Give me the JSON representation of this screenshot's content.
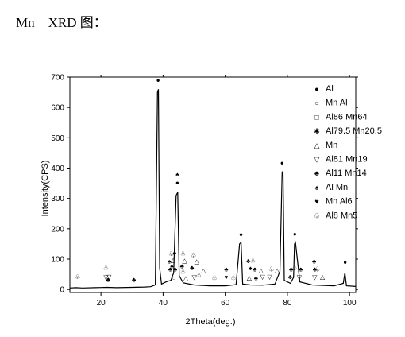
{
  "caption": "Mn    XRD 图：",
  "chart_data": {
    "type": "line",
    "title": "",
    "xlabel": "2Theta(deg.)",
    "ylabel": "Intensity(CPS)",
    "xlim": [
      10,
      102
    ],
    "ylim": [
      -10,
      700
    ],
    "xticks": [
      20,
      40,
      60,
      80,
      100
    ],
    "xtick_labels": [
      "20",
      "40",
      "60",
      "80",
      "100"
    ],
    "yticks": [
      0,
      100,
      200,
      300,
      400,
      500,
      600,
      700
    ],
    "ytick_labels": [
      "0",
      "100",
      "200",
      "300",
      "400",
      "500",
      "600",
      "700"
    ],
    "grid": false,
    "legend_position": "top-right",
    "legend": [
      {
        "symbol": "●",
        "label": "Al"
      },
      {
        "symbol": "○",
        "label": "Mn Al"
      },
      {
        "symbol": "□",
        "label": "Al86 Mn64"
      },
      {
        "symbol": "✱",
        "label": "Al79.5 Mn20.5"
      },
      {
        "symbol": "△",
        "label": "Mn"
      },
      {
        "symbol": "▽",
        "label": "Al81 Mn19"
      },
      {
        "symbol": "♣",
        "label": "Al11 Mn14"
      },
      {
        "symbol": "♠",
        "label": "Al Mn"
      },
      {
        "symbol": "♥",
        "label": "Mn Al6"
      },
      {
        "symbol": "♧",
        "label": "Al8 Mn5"
      }
    ],
    "series": [
      {
        "values_x": [
          10,
          12,
          14,
          18,
          22,
          25,
          30,
          34,
          36,
          37.5,
          38.2,
          38.5,
          38.9,
          39.5,
          41,
          42.5,
          43.4,
          44.2,
          44.7,
          45.2,
          46.5,
          50,
          55,
          60,
          63.5,
          64.6,
          65.1,
          65.6,
          68,
          72,
          76,
          77.6,
          78.3,
          78.6,
          79,
          81,
          82,
          82.3,
          82.6,
          84,
          88,
          95,
          98,
          98.5,
          99,
          102
        ],
        "values_y": [
          5,
          6,
          5,
          6,
          7,
          6,
          7,
          8,
          9,
          15,
          650,
          660,
          70,
          18,
          25,
          30,
          55,
          310,
          320,
          45,
          22,
          15,
          12,
          12,
          16,
          150,
          155,
          18,
          15,
          14,
          18,
          60,
          385,
          390,
          30,
          20,
          40,
          150,
          155,
          25,
          15,
          12,
          20,
          55,
          12,
          10
        ]
      }
    ],
    "annotations": [
      {
        "symbol": "●",
        "x": 38.4,
        "y": 683
      },
      {
        "symbol": "●",
        "x": 44.6,
        "y": 345
      },
      {
        "symbol": "♠",
        "x": 44.6,
        "y": 373
      },
      {
        "symbol": "●",
        "x": 65.1,
        "y": 175
      },
      {
        "symbol": "●",
        "x": 78.3,
        "y": 411
      },
      {
        "symbol": "●",
        "x": 82.4,
        "y": 176
      },
      {
        "symbol": "●",
        "x": 98.6,
        "y": 83
      },
      {
        "symbol": "♧",
        "x": 12.5,
        "y": 35
      },
      {
        "symbol": "♧",
        "x": 21.6,
        "y": 63
      },
      {
        "symbol": "▽",
        "x": 21.6,
        "y": 33
      },
      {
        "symbol": "▽",
        "x": 22.6,
        "y": 35
      },
      {
        "symbol": "♣",
        "x": 22.3,
        "y": 25
      },
      {
        "symbol": "♣",
        "x": 30.6,
        "y": 25
      },
      {
        "symbol": "♧",
        "x": 42.6,
        "y": 110
      },
      {
        "symbol": "♥",
        "x": 43.7,
        "y": 110
      },
      {
        "symbol": "♠",
        "x": 42.0,
        "y": 85
      },
      {
        "symbol": "△",
        "x": 43.2,
        "y": 90
      },
      {
        "symbol": "♣",
        "x": 42.3,
        "y": 60
      },
      {
        "symbol": "♠",
        "x": 42.8,
        "y": 70
      },
      {
        "symbol": "○",
        "x": 43.5,
        "y": 30
      },
      {
        "symbol": "♣",
        "x": 43.9,
        "y": 60
      },
      {
        "symbol": "♧",
        "x": 46.4,
        "y": 110
      },
      {
        "symbol": "△",
        "x": 46.9,
        "y": 88
      },
      {
        "symbol": "♣",
        "x": 46.1,
        "y": 70
      },
      {
        "symbol": "♧",
        "x": 46.4,
        "y": 50
      },
      {
        "symbol": "△",
        "x": 47.3,
        "y": 30
      },
      {
        "symbol": "♧",
        "x": 49.8,
        "y": 105
      },
      {
        "symbol": "△",
        "x": 50.8,
        "y": 85
      },
      {
        "symbol": "♣",
        "x": 49.3,
        "y": 65
      },
      {
        "symbol": "▽",
        "x": 50.0,
        "y": 33
      },
      {
        "symbol": "♧",
        "x": 51.5,
        "y": 40
      },
      {
        "symbol": "△",
        "x": 53.0,
        "y": 55
      },
      {
        "symbol": "♧",
        "x": 56.5,
        "y": 30
      },
      {
        "symbol": "♣",
        "x": 60.3,
        "y": 60
      },
      {
        "symbol": "♥",
        "x": 60.3,
        "y": 33
      },
      {
        "symbol": "♧",
        "x": 62.6,
        "y": 30
      },
      {
        "symbol": "♣",
        "x": 67.4,
        "y": 87
      },
      {
        "symbol": "♧",
        "x": 68.9,
        "y": 87
      },
      {
        "symbol": "♠",
        "x": 68.1,
        "y": 63
      },
      {
        "symbol": "♣",
        "x": 69.5,
        "y": 60
      },
      {
        "symbol": "△",
        "x": 67.7,
        "y": 32
      },
      {
        "symbol": "♣",
        "x": 69.9,
        "y": 30
      },
      {
        "symbol": "▽",
        "x": 72.0,
        "y": 35
      },
      {
        "symbol": "△",
        "x": 71.5,
        "y": 55
      },
      {
        "symbol": "♧",
        "x": 74.8,
        "y": 60
      },
      {
        "symbol": "△",
        "x": 76.7,
        "y": 55
      },
      {
        "symbol": "▽",
        "x": 74.3,
        "y": 35
      },
      {
        "symbol": "♣",
        "x": 80.9,
        "y": 35
      },
      {
        "symbol": "♣",
        "x": 81.2,
        "y": 60
      },
      {
        "symbol": "♧",
        "x": 82.3,
        "y": 63
      },
      {
        "symbol": "▽",
        "x": 83.8,
        "y": 33
      },
      {
        "symbol": "♣",
        "x": 84.3,
        "y": 60
      },
      {
        "symbol": "♣",
        "x": 88.6,
        "y": 85
      },
      {
        "symbol": "♣",
        "x": 88.8,
        "y": 60
      },
      {
        "symbol": "♧",
        "x": 89.6,
        "y": 60
      },
      {
        "symbol": "▽",
        "x": 88.8,
        "y": 33
      },
      {
        "symbol": "△",
        "x": 91.3,
        "y": 35
      }
    ]
  }
}
